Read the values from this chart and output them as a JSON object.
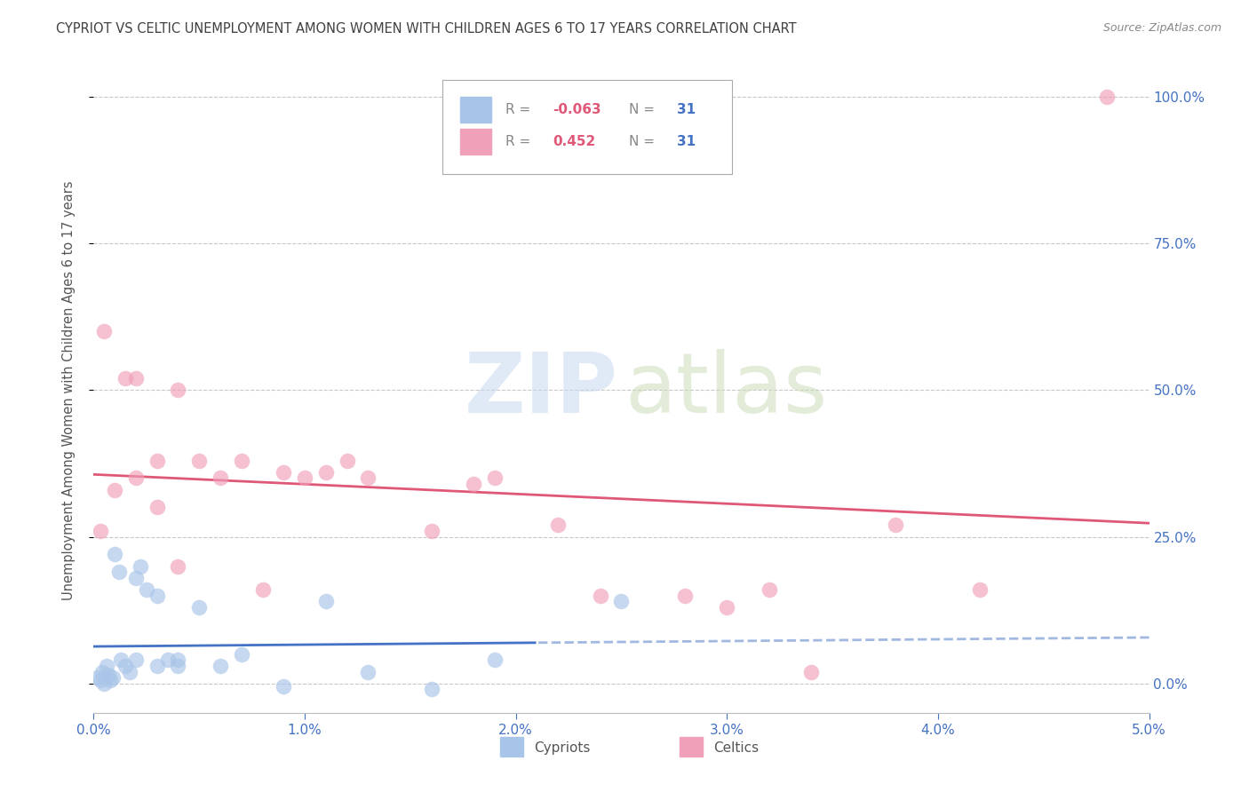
{
  "title": "CYPRIOT VS CELTIC UNEMPLOYMENT AMONG WOMEN WITH CHILDREN AGES 6 TO 17 YEARS CORRELATION CHART",
  "source": "Source: ZipAtlas.com",
  "ylabel": "Unemployment Among Women with Children Ages 6 to 17 years",
  "legend_label_cyp": "Cypriots",
  "legend_label_cel": "Celtics",
  "r_cyp": "-0.063",
  "r_cel": "0.452",
  "n_cyp": "31",
  "n_cel": "31",
  "cypriot_fill": "#a8c4e8",
  "celtic_fill": "#f0a0b8",
  "cypriot_line": "#4472c4",
  "celtic_line": "#e05878",
  "axis_tick_color": "#4472c4",
  "title_color": "#404040",
  "source_color": "#888888",
  "grid_color": "#c8c8c8",
  "ylabel_color": "#555555",
  "legend_r_color": "#e05878",
  "legend_n_color": "#4472c4",
  "legend_label_color": "#888888",
  "watermark_zip_color": "#c8d8f0",
  "watermark_atlas_color": "#ccddb8",
  "xlim": [
    0.0,
    0.05
  ],
  "ylim": [
    -0.05,
    1.05
  ],
  "ylim_display": [
    0.0,
    1.0
  ],
  "xtick_vals": [
    0.0,
    0.01,
    0.02,
    0.03,
    0.04,
    0.05
  ],
  "xtick_labels": [
    "0.0%",
    "1.0%",
    "2.0%",
    "3.0%",
    "4.0%",
    "5.0%"
  ],
  "ytick_vals": [
    0.0,
    0.25,
    0.5,
    0.75,
    1.0
  ],
  "ytick_labels": [
    "0.0%",
    "25.0%",
    "50.0%",
    "75.0%",
    "100.0%"
  ],
  "cypriot_x": [
    0.0002,
    0.0003,
    0.0004,
    0.0005,
    0.0006,
    0.0007,
    0.0008,
    0.0009,
    0.001,
    0.0012,
    0.0013,
    0.0015,
    0.0017,
    0.002,
    0.002,
    0.0022,
    0.0025,
    0.003,
    0.003,
    0.0035,
    0.004,
    0.004,
    0.005,
    0.006,
    0.007,
    0.009,
    0.011,
    0.013,
    0.016,
    0.019,
    0.025
  ],
  "cypriot_y": [
    0.01,
    0.005,
    0.02,
    0.0,
    0.03,
    0.015,
    0.005,
    0.01,
    0.22,
    0.19,
    0.04,
    0.03,
    0.02,
    0.18,
    0.04,
    0.2,
    0.16,
    0.15,
    0.03,
    0.04,
    0.04,
    0.03,
    0.13,
    0.03,
    0.05,
    -0.005,
    0.14,
    0.02,
    -0.01,
    0.04,
    0.14
  ],
  "celtic_x": [
    0.0003,
    0.0005,
    0.001,
    0.0015,
    0.002,
    0.002,
    0.003,
    0.003,
    0.004,
    0.004,
    0.005,
    0.006,
    0.007,
    0.008,
    0.009,
    0.01,
    0.011,
    0.012,
    0.013,
    0.016,
    0.018,
    0.019,
    0.022,
    0.024,
    0.028,
    0.03,
    0.032,
    0.034,
    0.038,
    0.042,
    0.048
  ],
  "celtic_y": [
    0.26,
    0.6,
    0.33,
    0.52,
    0.35,
    0.52,
    0.3,
    0.38,
    0.2,
    0.5,
    0.38,
    0.35,
    0.38,
    0.16,
    0.36,
    0.35,
    0.36,
    0.38,
    0.35,
    0.26,
    0.34,
    0.35,
    0.27,
    0.15,
    0.15,
    0.13,
    0.16,
    0.02,
    0.27,
    0.16,
    1.0
  ],
  "trend_split_x": 0.021,
  "background_color": "#ffffff"
}
